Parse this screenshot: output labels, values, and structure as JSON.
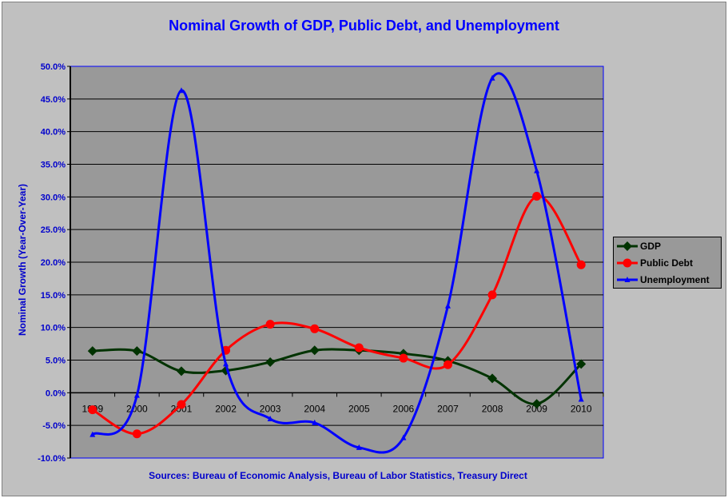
{
  "chart_data": {
    "type": "line",
    "title": "Nominal Growth of GDP, Public Debt, and Unemployment",
    "xlabel": "",
    "ylabel": "Nominal Growth (Year-Over-Year)",
    "source": "Sources: Bureau of Economic Analysis, Bureau of Labor Statistics, Treasury Direct",
    "categories": [
      "1999",
      "2000",
      "2001",
      "2002",
      "2003",
      "2004",
      "2005",
      "2006",
      "2007",
      "2008",
      "2009",
      "2010"
    ],
    "ylim": [
      -10,
      50
    ],
    "yticks": [
      "-10.0%",
      "-5.0%",
      "0.0%",
      "5.0%",
      "10.0%",
      "15.0%",
      "20.0%",
      "25.0%",
      "30.0%",
      "35.0%",
      "40.0%",
      "45.0%",
      "50.0%"
    ],
    "grid": true,
    "legend_position": "right",
    "series": [
      {
        "name": "GDP",
        "color": "#003300",
        "marker": "diamond",
        "values": [
          6.4,
          6.4,
          3.3,
          3.4,
          4.7,
          6.5,
          6.5,
          6.0,
          4.9,
          2.2,
          -1.7,
          4.4
        ]
      },
      {
        "name": "Public Debt",
        "color": "#ff0000",
        "marker": "circle",
        "values": [
          -2.6,
          -6.3,
          -1.8,
          6.5,
          10.5,
          9.8,
          6.9,
          5.3,
          4.3,
          15.0,
          30.1,
          19.6
        ]
      },
      {
        "name": "Unemployment",
        "color": "#0000ff",
        "marker": "triangle",
        "values": [
          -6.4,
          -0.4,
          46.3,
          4.4,
          -4.0,
          -4.6,
          -8.4,
          -6.9,
          13.3,
          48.2,
          34.0,
          -1.0
        ]
      }
    ]
  }
}
